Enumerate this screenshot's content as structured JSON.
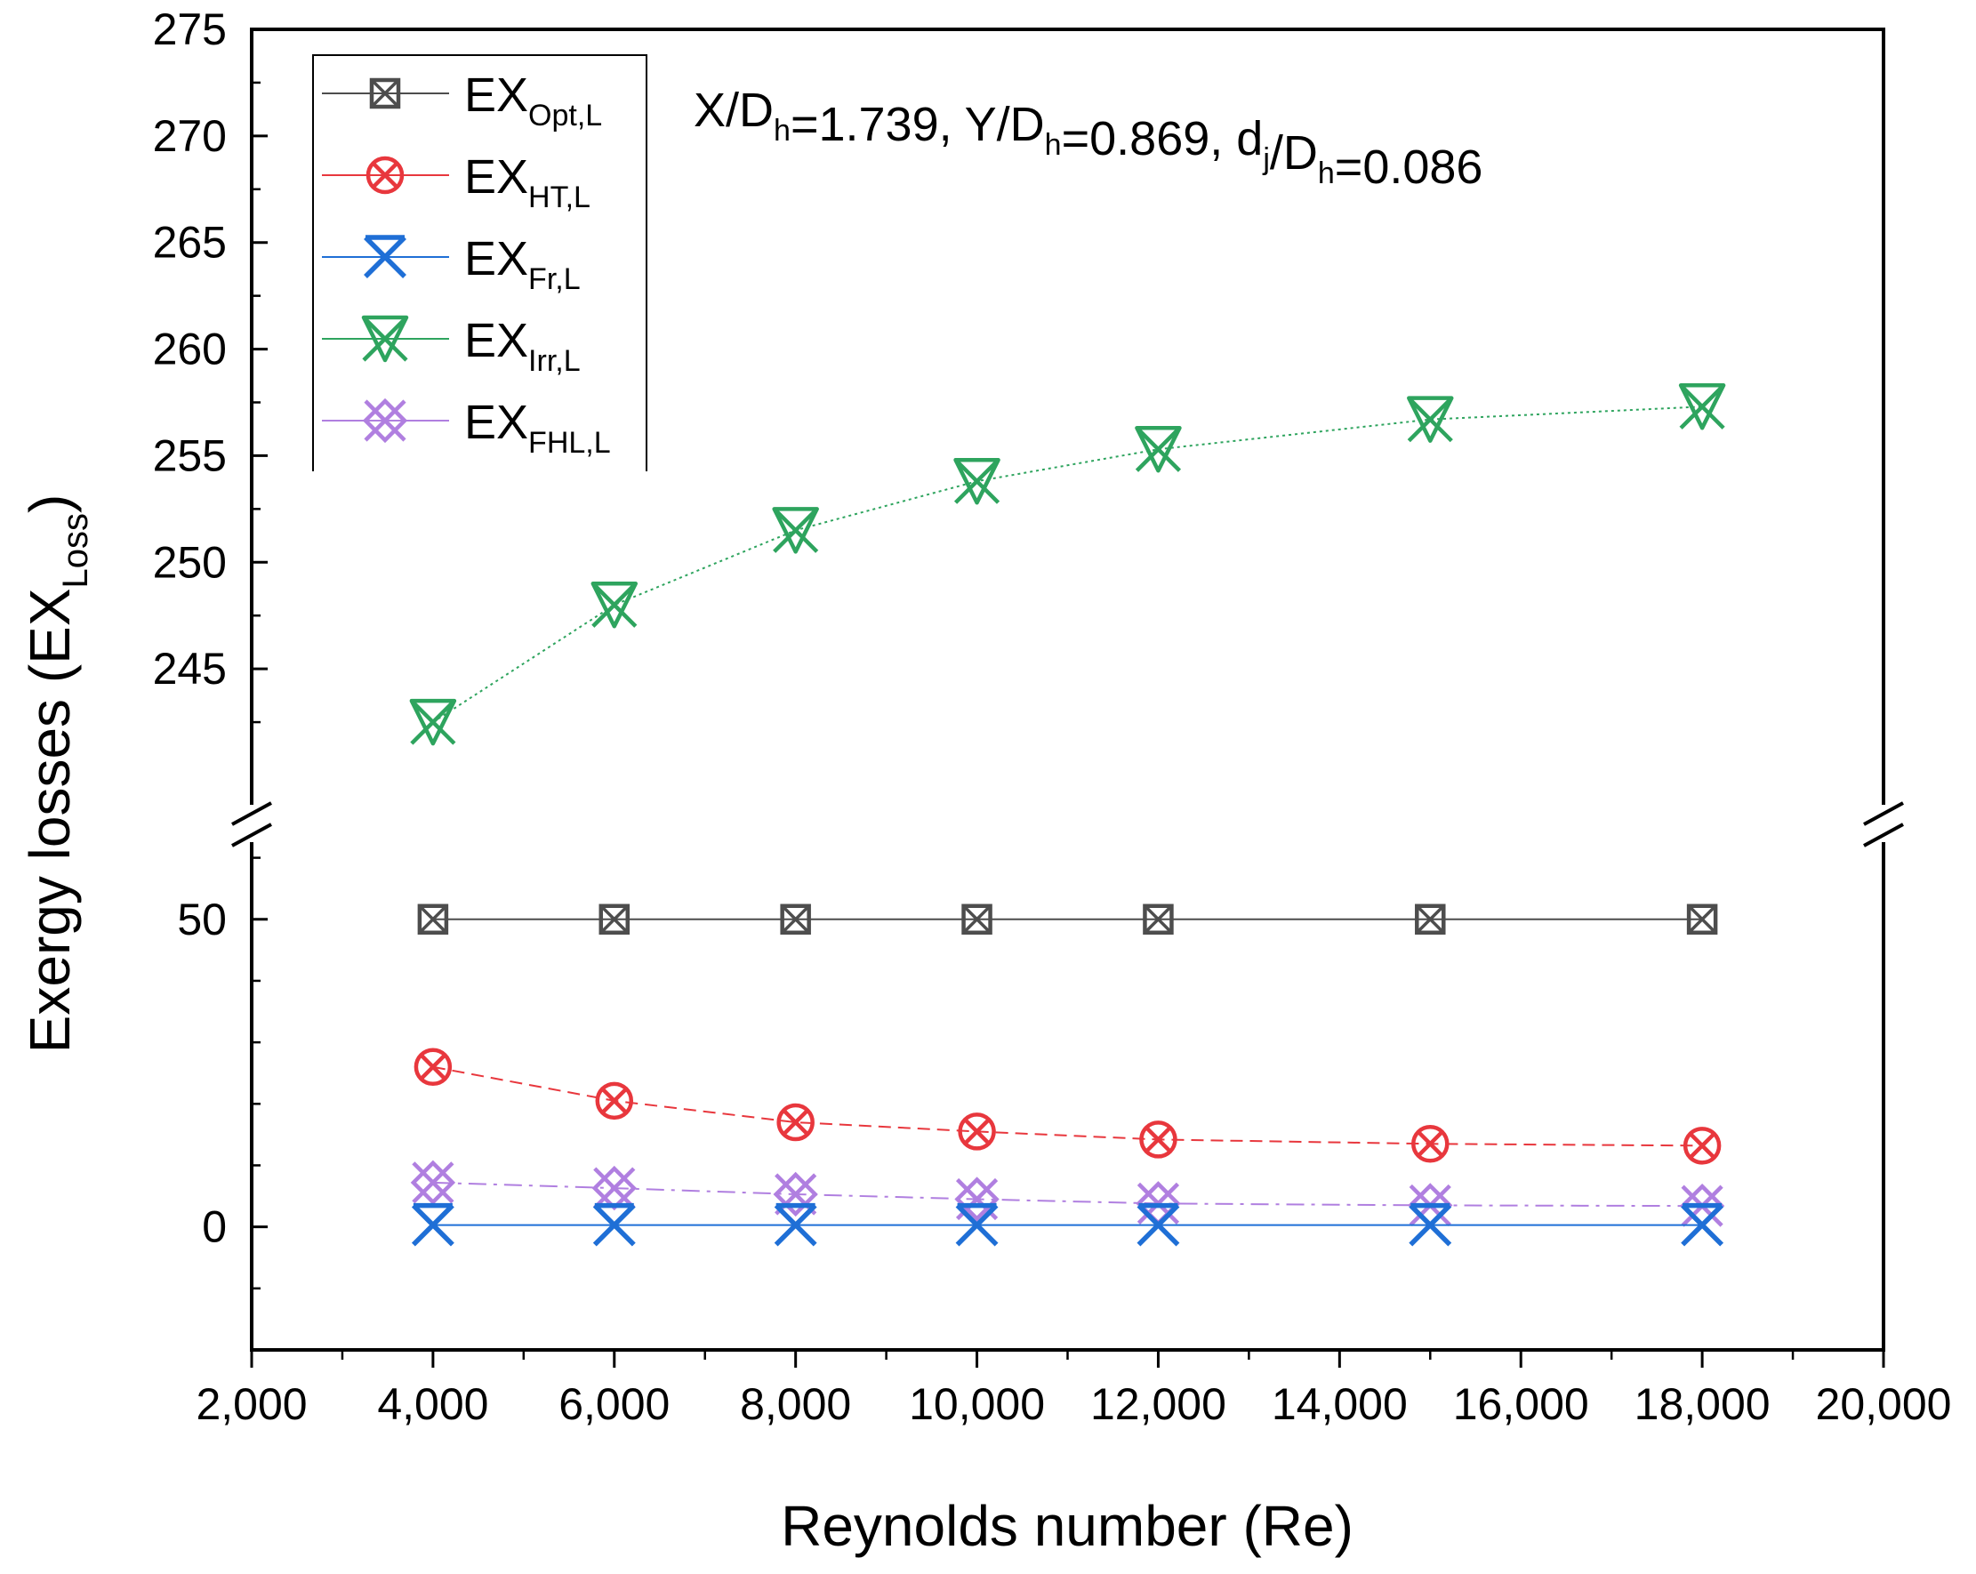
{
  "chart_data": {
    "type": "line",
    "xlabel": "Reynolds number (Re)",
    "ylabel": "Exergy losses (EX",
    "ylabel_sub": "Loss",
    "ylabel_close": ")",
    "annotation": [
      {
        "text": "X/D",
        "sub": "h"
      },
      {
        "text": "=1.739, Y/D",
        "sub": "h"
      },
      {
        "text": "=0.869, d",
        "sub": "j"
      },
      {
        "text": "/D",
        "sub": "h"
      },
      {
        "text": "=0.086",
        "sub": ""
      }
    ],
    "x_axis": {
      "min": 2000,
      "max": 20000,
      "major_ticks": [
        2000,
        4000,
        6000,
        8000,
        10000,
        12000,
        14000,
        16000,
        18000,
        20000
      ],
      "tick_labels": [
        "2,000",
        "4,000",
        "6,000",
        "8,000",
        "10,000",
        "12,000",
        "14,000",
        "16,000",
        "18,000",
        "20,000"
      ]
    },
    "y_axis": {
      "broken": true,
      "lower_segment": {
        "min": -20,
        "max": 65,
        "major_ticks": [
          0,
          50
        ],
        "tick_labels": [
          "0",
          "50"
        ],
        "minor_ticks": [
          -10,
          10,
          20,
          30,
          40,
          60
        ]
      },
      "upper_segment": {
        "min": 240,
        "max": 275,
        "major_ticks": [
          245,
          250,
          255,
          260,
          265,
          270,
          275
        ],
        "tick_labels": [
          "245",
          "250",
          "255",
          "260",
          "265",
          "270",
          "275"
        ]
      }
    },
    "x": [
      4000,
      6000,
      8000,
      10000,
      12000,
      15000,
      18000
    ],
    "series": [
      {
        "name": "EX",
        "sub": "Opt,L",
        "color": "#4d4d4d",
        "marker": "square-x",
        "line": "solid",
        "values": [
          50,
          50,
          50,
          50,
          50,
          50,
          50
        ]
      },
      {
        "name": "EX",
        "sub": "HT,L",
        "color": "#e8373d",
        "marker": "circle-x",
        "line": "dash",
        "values": [
          26,
          20.5,
          17,
          15.5,
          14.2,
          13.5,
          13.2
        ]
      },
      {
        "name": "EX",
        "sub": "Fr,L",
        "color": "#1f6fd6",
        "marker": "x-bar",
        "line": "solid",
        "values": [
          0.3,
          0.3,
          0.3,
          0.3,
          0.3,
          0.3,
          0.3
        ]
      },
      {
        "name": "EX",
        "sub": "Irr,L",
        "color": "#2ea45e",
        "marker": "triangle-x",
        "line": "dot",
        "values": [
          242.5,
          248,
          251.5,
          253.8,
          255.3,
          256.7,
          257.3
        ]
      },
      {
        "name": "EX",
        "sub": "FHL,L",
        "color": "#b07fe0",
        "marker": "diamond-x",
        "line": "dashdot",
        "values": [
          7.2,
          6.3,
          5.3,
          4.5,
          3.8,
          3.5,
          3.4
        ]
      }
    ]
  }
}
